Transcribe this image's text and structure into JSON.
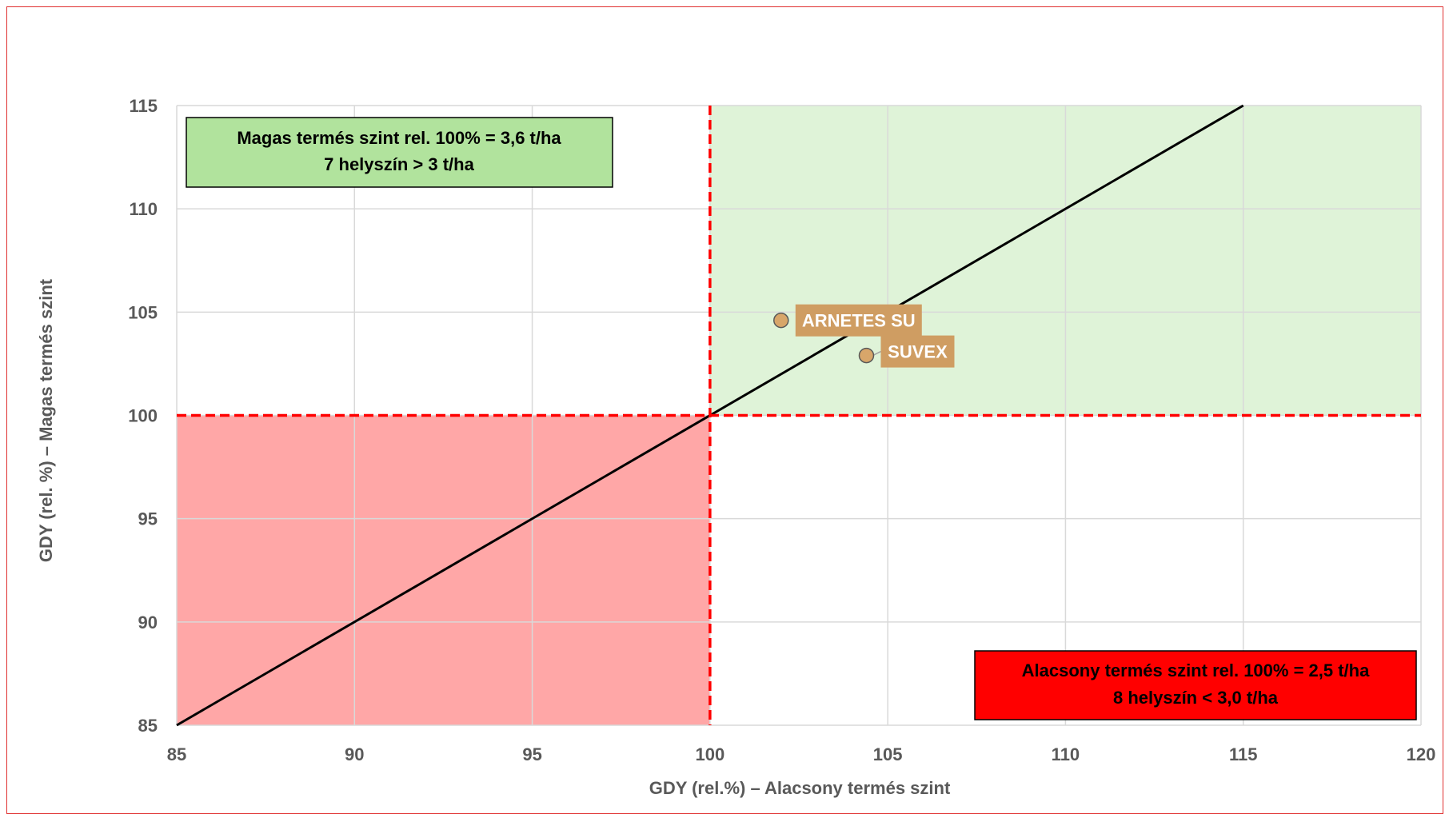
{
  "chart_data": {
    "type": "scatter",
    "xlabel": "GDY (rel.%) – Alacsony termés szint",
    "ylabel": "GDY (rel. %) – Magas termés szint",
    "xlim": [
      85,
      120
    ],
    "ylim": [
      85,
      115
    ],
    "x_ticks": [
      "85",
      "90",
      "95",
      "100",
      "105",
      "110",
      "115",
      "120"
    ],
    "y_ticks": [
      "85",
      "90",
      "95",
      "100",
      "105",
      "110",
      "115"
    ],
    "grid": true,
    "reference_line": {
      "from": [
        85,
        85
      ],
      "to": [
        115,
        115
      ]
    },
    "threshold_x": 100,
    "threshold_y": 100,
    "points": [
      {
        "label": "ARNETES SU",
        "x": 102.0,
        "y": 104.6
      },
      {
        "label": "SUVEX",
        "x": 104.4,
        "y": 102.9
      }
    ],
    "annotations": {
      "high": {
        "line1": "Magas termés szint rel. 100% = 3,6 t/ha",
        "line2": "7 helyszín > 3 t/ha"
      },
      "low": {
        "line1": "Alacsony termés szint rel. 100% = 2,5 t/ha",
        "line2": "8 helyszín < 3,0 t/ha"
      }
    },
    "colors": {
      "high_zone": "#dff3d8",
      "low_zone": "#ffa7a7",
      "threshold": "#ff0000",
      "reference": "#000000",
      "point": "#d8a66a",
      "label_bg": "#cf9d62",
      "high_box": "#b1e39d",
      "low_box": "#ff0000",
      "grid": "#d9d9d9"
    }
  }
}
